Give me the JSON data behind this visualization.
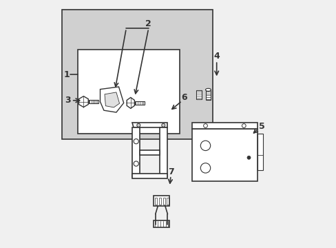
{
  "background_color": "#f0f0f0",
  "inner_bg_color": "#ffffff",
  "line_color": "#333333",
  "light_gray": "#d0d0d0",
  "title": "",
  "figsize": [
    4.89,
    3.6
  ],
  "dpi": 100
}
